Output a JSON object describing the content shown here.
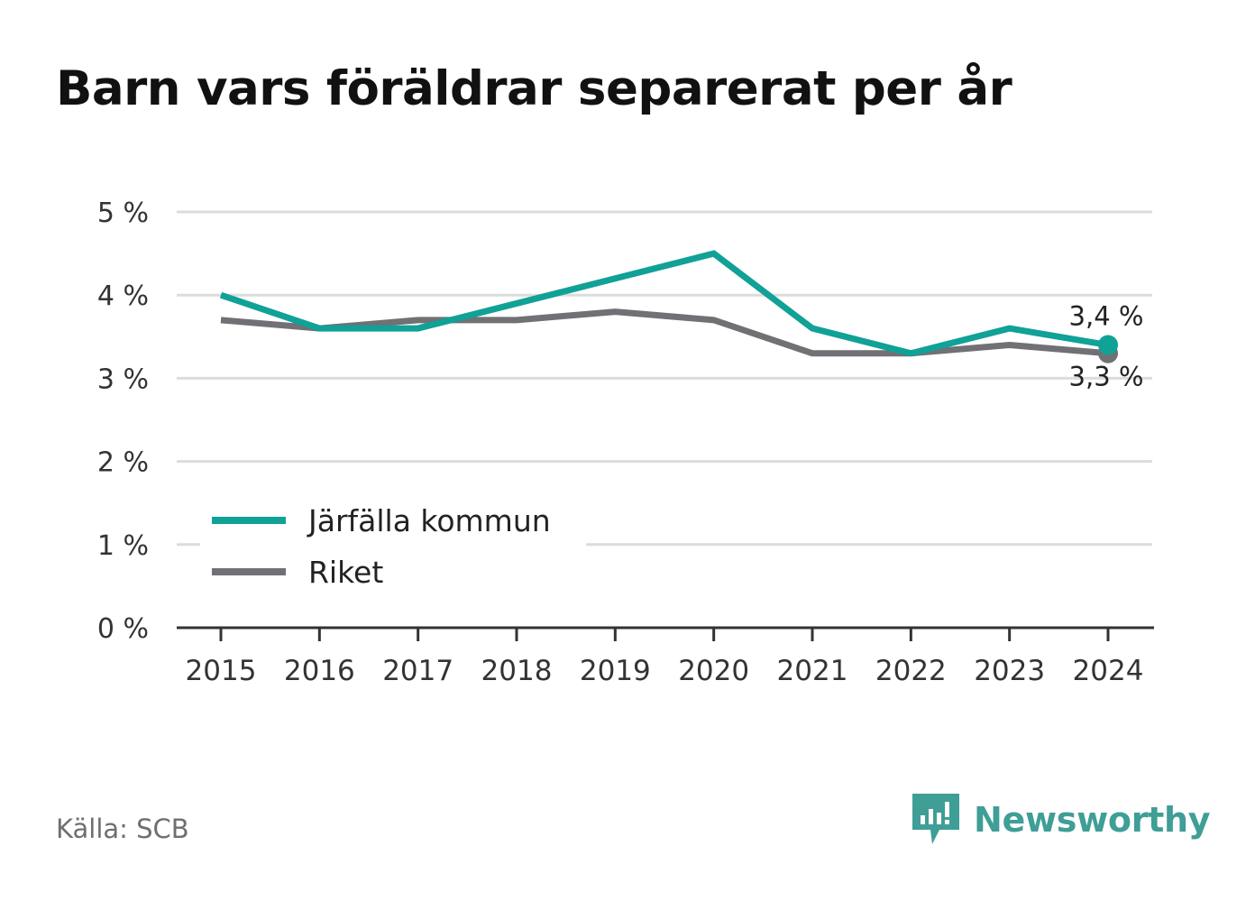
{
  "title": "Barn vars föräldrar separerat per år",
  "source": "Källa: SCB",
  "brand": {
    "name": "Newsworthy",
    "icon": "newsworthy-logo-icon",
    "color": "#3f9e96"
  },
  "chart_data": {
    "type": "line",
    "title": "Barn vars föräldrar separerat per år",
    "x": [
      "2015",
      "2016",
      "2017",
      "2018",
      "2019",
      "2020",
      "2021",
      "2022",
      "2023",
      "2024"
    ],
    "ylim": [
      0,
      5
    ],
    "yticks": [
      {
        "value": 0,
        "label": "0 %"
      },
      {
        "value": 1,
        "label": "1 %"
      },
      {
        "value": 2,
        "label": "2 %"
      },
      {
        "value": 3,
        "label": "3 %"
      },
      {
        "value": 4,
        "label": "4 %"
      },
      {
        "value": 5,
        "label": "5 %"
      }
    ],
    "grid": true,
    "legend_position": "bottom-left",
    "series": [
      {
        "name": "Järfälla kommun",
        "color": "#10a197",
        "values": [
          4.0,
          3.6,
          3.6,
          3.9,
          4.2,
          4.5,
          3.6,
          3.3,
          3.6,
          3.4
        ],
        "end_label": "3,4 %"
      },
      {
        "name": "Riket",
        "color": "#717075",
        "values": [
          3.7,
          3.6,
          3.7,
          3.7,
          3.8,
          3.7,
          3.3,
          3.3,
          3.4,
          3.3
        ],
        "end_label": "3,3 %"
      }
    ]
  }
}
